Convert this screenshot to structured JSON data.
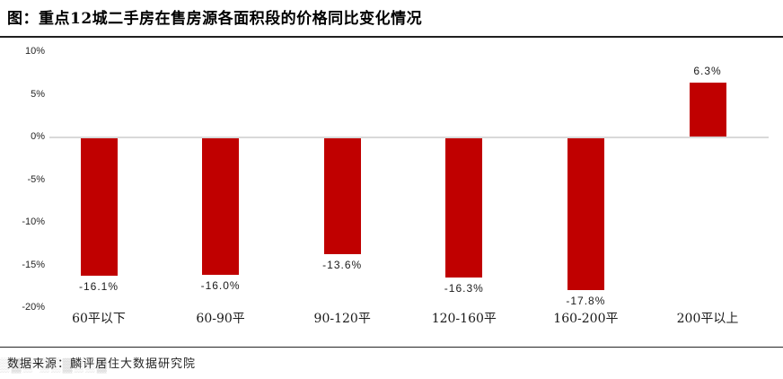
{
  "header": {
    "title": "图：重点12城二手房在售房源各面积段的价格同比变化情况"
  },
  "footer": {
    "source": "数据来源：麟评居住大数据研究院",
    "watermark_text": "▒▓▒ ▒▒▓▒▒▓"
  },
  "colors": {
    "bar": "#c00000",
    "zero_line": "#d9d9d9",
    "rule": "#1f1f1f",
    "text": "#1a1a1a"
  },
  "chart_data": {
    "type": "bar",
    "title": "图：重点12城二手房在售房源各面积段的价格同比变化情况",
    "categories": [
      "60平以下",
      "60-90平",
      "90-120平",
      "120-160平",
      "160-200平",
      "200平以上"
    ],
    "values": [
      -16.1,
      -16.0,
      -13.6,
      -16.3,
      -17.8,
      6.3
    ],
    "value_labels": [
      "-16.1%",
      "-16.0%",
      "-13.6%",
      "-16.3%",
      "-17.8%",
      "6.3%"
    ],
    "xlabel": "",
    "ylabel": "",
    "ylim": [
      -20,
      10
    ],
    "yticks": [
      {
        "value": 10,
        "label": "10%"
      },
      {
        "value": 5,
        "label": "5%"
      },
      {
        "value": 0,
        "label": "0%"
      },
      {
        "value": -5,
        "label": "-5%"
      },
      {
        "value": -10,
        "label": "-10%"
      },
      {
        "value": -15,
        "label": "-15%"
      },
      {
        "value": -20,
        "label": "-20%"
      }
    ],
    "grid": false,
    "legend": null,
    "bar_color": "#c00000"
  }
}
